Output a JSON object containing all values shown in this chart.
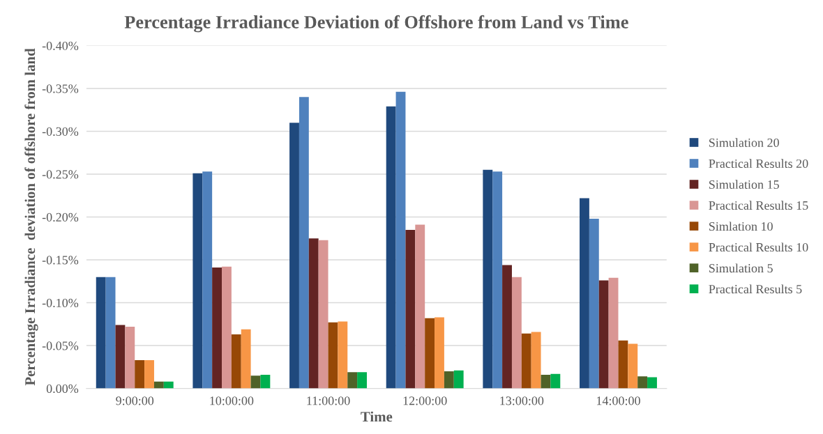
{
  "chart_data": {
    "type": "bar",
    "title": "Percentage Irradiance Deviation of Offshore from Land vs Time",
    "xlabel": "Time",
    "ylabel": "Percentage Irradiance  deviation of offshore from land",
    "categories": [
      "9:00:00",
      "10:00:00",
      "11:00:00",
      "12:00:00",
      "13:00:00",
      "14:00:00"
    ],
    "series": [
      {
        "name": "Simulation 20",
        "color": "#1f497d",
        "values": [
          -0.13,
          -0.251,
          -0.31,
          -0.329,
          -0.255,
          -0.222
        ]
      },
      {
        "name": "Practical Results 20",
        "color": "#4f81bd",
        "values": [
          -0.13,
          -0.253,
          -0.34,
          -0.346,
          -0.253,
          -0.198
        ]
      },
      {
        "name": "Simulation 15",
        "color": "#632423",
        "values": [
          -0.074,
          -0.141,
          -0.175,
          -0.185,
          -0.144,
          -0.126
        ]
      },
      {
        "name": "Practical Results 15",
        "color": "#d99694",
        "values": [
          -0.072,
          -0.142,
          -0.173,
          -0.191,
          -0.13,
          -0.129
        ]
      },
      {
        "name": "Simlation 10",
        "color": "#974806",
        "values": [
          -0.033,
          -0.063,
          -0.077,
          -0.082,
          -0.064,
          -0.056
        ]
      },
      {
        "name": "Practical Results 10",
        "color": "#f79646",
        "values": [
          -0.033,
          -0.069,
          -0.078,
          -0.083,
          -0.066,
          -0.052
        ]
      },
      {
        "name": "Simulation 5",
        "color": "#4f6228",
        "values": [
          -0.008,
          -0.015,
          -0.019,
          -0.02,
          -0.016,
          -0.014
        ]
      },
      {
        "name": "Practical Results 5",
        "color": "#00b050",
        "values": [
          -0.008,
          -0.016,
          -0.019,
          -0.021,
          -0.017,
          -0.013
        ]
      }
    ],
    "ylim": [
      0,
      -0.4
    ],
    "yticks": [
      {
        "value": 0,
        "label": "0.00%"
      },
      {
        "value": -0.05,
        "label": "-0.05%"
      },
      {
        "value": -0.1,
        "label": "-0.10%"
      },
      {
        "value": -0.15,
        "label": "-0.15%"
      },
      {
        "value": -0.2,
        "label": "-0.20%"
      },
      {
        "value": -0.25,
        "label": "-0.25%"
      },
      {
        "value": -0.3,
        "label": "-0.30%"
      },
      {
        "value": -0.35,
        "label": "-0.35%"
      },
      {
        "value": -0.4,
        "label": "-0.40%"
      }
    ],
    "grid": "y",
    "legend": "right"
  }
}
